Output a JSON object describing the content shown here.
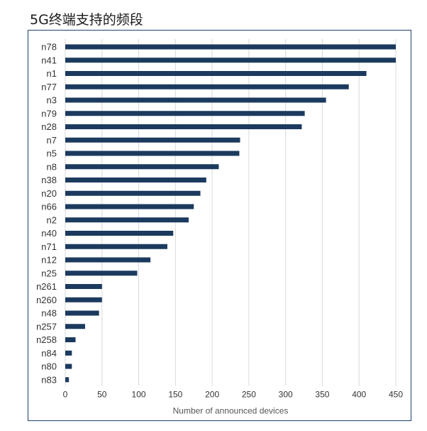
{
  "page": {
    "title": "5G终端支持的频段"
  },
  "chart_data": {
    "type": "bar",
    "orientation": "horizontal",
    "title": "5G终端支持的频段",
    "xlabel": "Number of announced devices",
    "ylabel": "",
    "xlim": [
      0,
      450
    ],
    "xticks": [
      0,
      50,
      100,
      150,
      200,
      250,
      300,
      350,
      400,
      450
    ],
    "grid": "vertical",
    "legend": "none",
    "bar_color": "#1b3a5e",
    "grid_color": "#d9d9d9",
    "categories": [
      "n78",
      "n41",
      "n1",
      "n77",
      "n3",
      "n79",
      "n28",
      "n7",
      "n5",
      "n8",
      "n38",
      "n20",
      "n66",
      "n2",
      "n40",
      "n71",
      "n12",
      "n25",
      "n261",
      "n260",
      "n48",
      "n257",
      "n258",
      "n84",
      "n80",
      "n83"
    ],
    "values": [
      450,
      450,
      410,
      386,
      355,
      326,
      322,
      238,
      237,
      209,
      192,
      184,
      175,
      168,
      147,
      139,
      116,
      98,
      50,
      50,
      46,
      27,
      14,
      9,
      9,
      5
    ]
  }
}
